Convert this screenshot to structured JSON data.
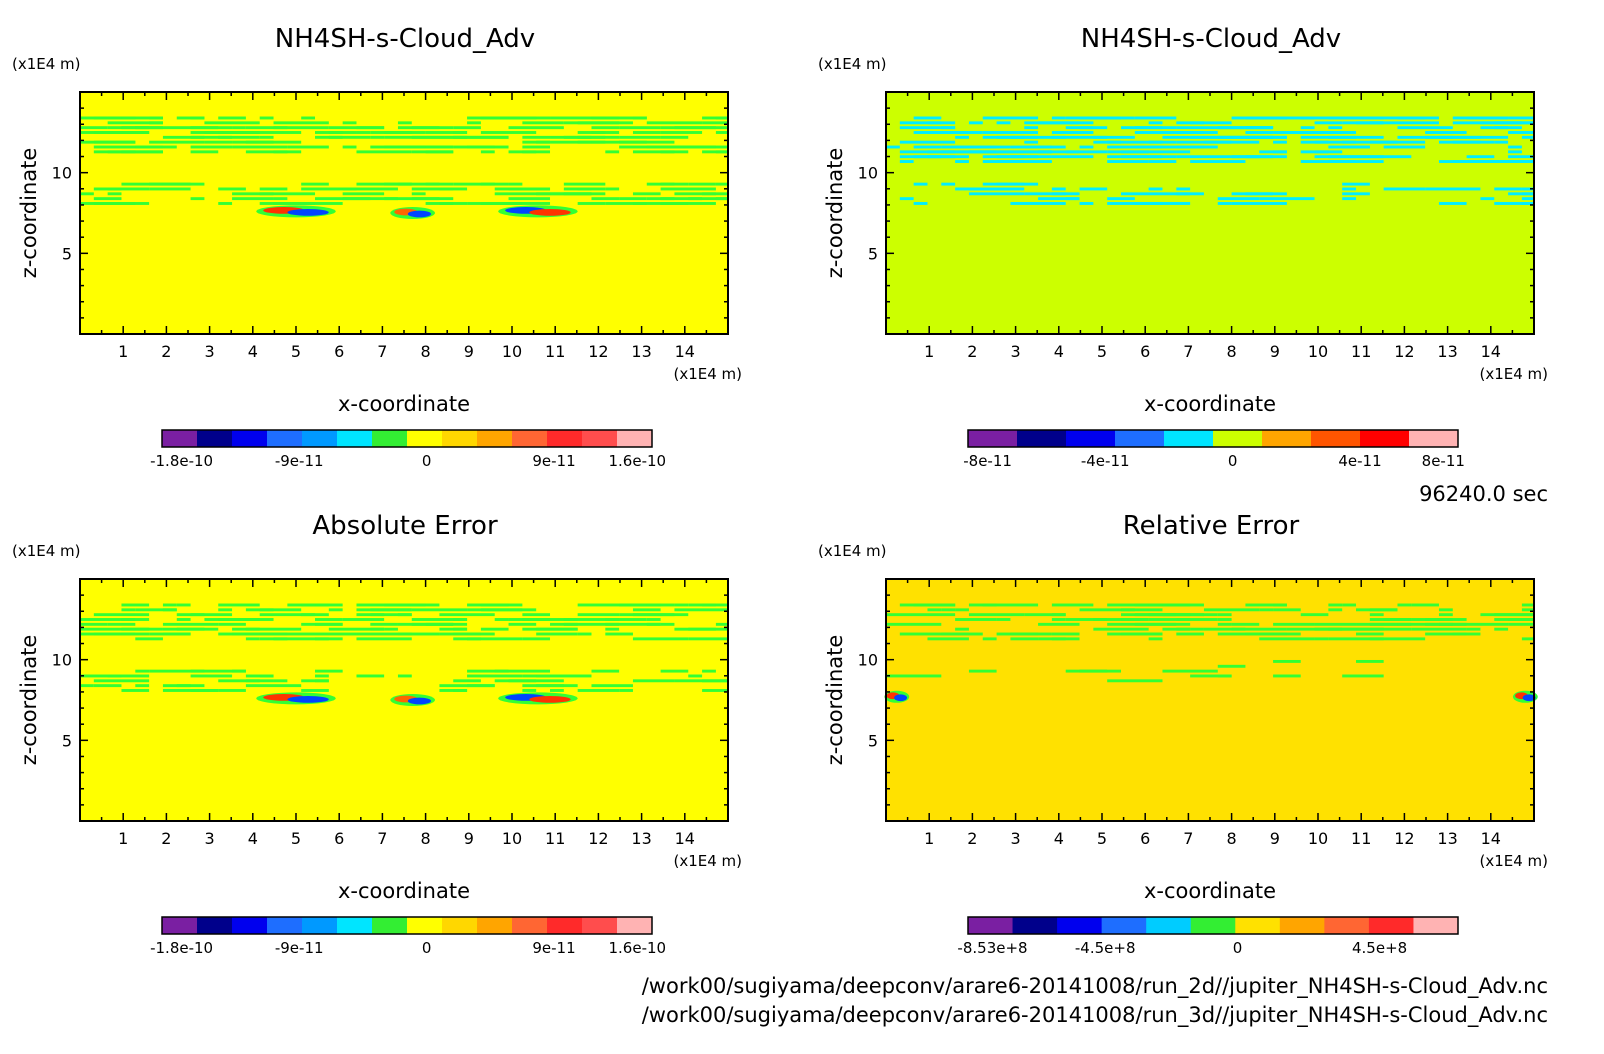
{
  "figure": {
    "time_label": "96240.0 sec",
    "file_paths": [
      "/work00/sugiyama/deepconv/arare6-20141008/run_2d//jupiter_NH4SH-s-Cloud_Adv.nc",
      "/work00/sugiyama/deepconv/arare6-20141008/run_3d//jupiter_NH4SH-s-Cloud_Adv.nc"
    ]
  },
  "chart_data": [
    {
      "type": "heatmap",
      "title": "NH4SH-s-Cloud_Adv",
      "xlabel": "x-coordinate",
      "ylabel": "z-coordinate",
      "x_unit": "(x1E4 m)",
      "y_unit": "(x1E4 m)",
      "xlim": [
        0,
        15
      ],
      "ylim": [
        0,
        15
      ],
      "xticks": [
        "1",
        "2",
        "3",
        "4",
        "5",
        "6",
        "7",
        "8",
        "9",
        "10",
        "11",
        "12",
        "13",
        "14"
      ],
      "yticks": [
        "5",
        "10"
      ],
      "background": "#ffff00",
      "features": [
        {
          "kind": "band",
          "z": [
            11.2,
            13.4
          ],
          "color": "#33ff33",
          "density": 0.38
        },
        {
          "kind": "band",
          "z": [
            8.0,
            9.3
          ],
          "color": "#33ff33",
          "density": 0.3
        },
        {
          "kind": "blob",
          "x": 5.0,
          "z": 7.6,
          "w": 1.6,
          "color": "#ff3300",
          "color2": "#0044ff"
        },
        {
          "kind": "blob",
          "x": 7.7,
          "z": 7.5,
          "w": 0.9,
          "color": "#ff6600",
          "color2": "#0044ff"
        },
        {
          "kind": "blob",
          "x": 10.6,
          "z": 7.6,
          "w": 1.6,
          "color": "#0044ff",
          "color2": "#ff3300"
        }
      ],
      "colorbar": {
        "colors": [
          "#7a1fa2",
          "#00008b",
          "#0000ee",
          "#1e6eff",
          "#0099ff",
          "#00e5ff",
          "#33ee33",
          "#ffff00",
          "#ffd700",
          "#ffa500",
          "#ff6633",
          "#ff2a2a",
          "#ff4d4d",
          "#ffb3b3"
        ],
        "labels": [
          "-1.8e-10",
          "-9e-11",
          "0",
          "9e-11",
          "1.6e-10"
        ]
      }
    },
    {
      "type": "heatmap",
      "title": "NH4SH-s-Cloud_Adv",
      "xlabel": "x-coordinate",
      "ylabel": "z-coordinate",
      "x_unit": "(x1E4 m)",
      "y_unit": "(x1E4 m)",
      "xlim": [
        0,
        15
      ],
      "ylim": [
        0,
        15
      ],
      "xticks": [
        "1",
        "2",
        "3",
        "4",
        "5",
        "6",
        "7",
        "8",
        "9",
        "10",
        "11",
        "12",
        "13",
        "14"
      ],
      "yticks": [
        "5",
        "10"
      ],
      "background": "#ccff00",
      "features": [
        {
          "kind": "band",
          "z": [
            10.6,
            13.4
          ],
          "color": "#00eeff",
          "density": 0.42
        },
        {
          "kind": "band",
          "z": [
            8.0,
            9.4
          ],
          "color": "#00eeff",
          "density": 0.18
        }
      ],
      "colorbar": {
        "colors": [
          "#7a1fa2",
          "#00008b",
          "#0000ee",
          "#1e6eff",
          "#00e5ff",
          "#ccff00",
          "#ffa500",
          "#ff5500",
          "#ff0000",
          "#ffb3b3"
        ],
        "labels": [
          "-8e-11",
          "-4e-11",
          "0",
          "4e-11",
          "8e-11"
        ]
      }
    },
    {
      "type": "heatmap",
      "title": "Absolute Error",
      "xlabel": "x-coordinate",
      "ylabel": "z-coordinate",
      "x_unit": "(x1E4 m)",
      "y_unit": "(x1E4 m)",
      "xlim": [
        0,
        15
      ],
      "ylim": [
        0,
        15
      ],
      "xticks": [
        "1",
        "2",
        "3",
        "4",
        "5",
        "6",
        "7",
        "8",
        "9",
        "10",
        "11",
        "12",
        "13",
        "14"
      ],
      "yticks": [
        "5",
        "10"
      ],
      "background": "#ffff00",
      "features": [
        {
          "kind": "band",
          "z": [
            11.2,
            13.4
          ],
          "color": "#33ff33",
          "density": 0.38
        },
        {
          "kind": "band",
          "z": [
            8.0,
            9.3
          ],
          "color": "#33ff33",
          "density": 0.3
        },
        {
          "kind": "blob",
          "x": 5.0,
          "z": 7.6,
          "w": 1.6,
          "color": "#ff3300",
          "color2": "#0044ff"
        },
        {
          "kind": "blob",
          "x": 7.7,
          "z": 7.5,
          "w": 0.9,
          "color": "#ff6600",
          "color2": "#0044ff"
        },
        {
          "kind": "blob",
          "x": 10.6,
          "z": 7.6,
          "w": 1.6,
          "color": "#0044ff",
          "color2": "#ff3300"
        }
      ],
      "colorbar": {
        "colors": [
          "#7a1fa2",
          "#00008b",
          "#0000ee",
          "#1e6eff",
          "#0099ff",
          "#00e5ff",
          "#33ee33",
          "#ffff00",
          "#ffd700",
          "#ffa500",
          "#ff6633",
          "#ff2a2a",
          "#ff4d4d",
          "#ffb3b3"
        ],
        "labels": [
          "-1.8e-10",
          "-9e-11",
          "0",
          "9e-11",
          "1.6e-10"
        ]
      }
    },
    {
      "type": "heatmap",
      "title": "Relative Error",
      "xlabel": "x-coordinate",
      "ylabel": "z-coordinate",
      "x_unit": "(x1E4 m)",
      "y_unit": "(x1E4 m)",
      "xlim": [
        0,
        15
      ],
      "ylim": [
        0,
        15
      ],
      "xticks": [
        "1",
        "2",
        "3",
        "4",
        "5",
        "6",
        "7",
        "8",
        "9",
        "10",
        "11",
        "12",
        "13",
        "14"
      ],
      "yticks": [
        "5",
        "10"
      ],
      "background": "#ffe100",
      "features": [
        {
          "kind": "band",
          "z": [
            11.2,
            13.4
          ],
          "color": "#33ff33",
          "density": 0.36
        },
        {
          "kind": "band",
          "z": [
            8.6,
            10.0
          ],
          "color": "#33ff33",
          "density": 0.08
        },
        {
          "kind": "blob",
          "x": 0.25,
          "z": 7.7,
          "w": 0.5,
          "color": "#ff3300",
          "color2": "#0044ff"
        },
        {
          "kind": "blob",
          "x": 14.8,
          "z": 7.7,
          "w": 0.5,
          "color": "#ff3300",
          "color2": "#0044ff"
        }
      ],
      "colorbar": {
        "colors": [
          "#7a1fa2",
          "#00008b",
          "#0000ee",
          "#1e6eff",
          "#00ccff",
          "#33ee33",
          "#ffe100",
          "#ffa500",
          "#ff6633",
          "#ff2a2a",
          "#ffb3b3"
        ],
        "labels": [
          "-8.53e+8",
          "-4.5e+8",
          "0",
          "4.5e+8"
        ]
      }
    }
  ]
}
